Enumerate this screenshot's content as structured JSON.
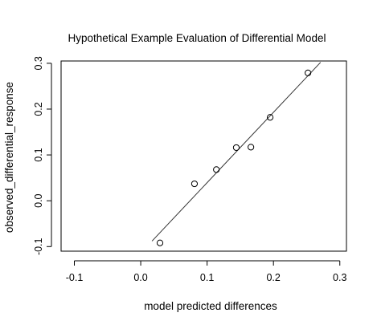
{
  "chart_data": {
    "type": "scatter",
    "title": "Hypothetical Example Evaluation of Differential Model",
    "xlabel": "model predicted differences",
    "ylabel": "observed_differential_response",
    "xlim": [
      -0.12,
      0.31
    ],
    "ylim": [
      -0.11,
      0.305
    ],
    "x_ticks": [
      -0.1,
      0.0,
      0.1,
      0.2,
      0.3
    ],
    "x_tick_labels": [
      "-0.1",
      "0.0",
      "0.1",
      "0.2",
      "0.3"
    ],
    "y_ticks": [
      -0.1,
      0.0,
      0.1,
      0.2,
      0.3
    ],
    "y_tick_labels": [
      "-0.1",
      "0.0",
      "0.1",
      "0.2",
      "0.3"
    ],
    "points": [
      {
        "x": 0.029,
        "y": -0.092
      },
      {
        "x": 0.081,
        "y": 0.037
      },
      {
        "x": 0.114,
        "y": 0.068
      },
      {
        "x": 0.144,
        "y": 0.116
      },
      {
        "x": 0.166,
        "y": 0.117
      },
      {
        "x": 0.195,
        "y": 0.182
      },
      {
        "x": 0.252,
        "y": 0.279
      }
    ],
    "fit_line": {
      "x1": 0.017,
      "y1": -0.088,
      "x2": 0.271,
      "y2": 0.302
    },
    "grid": false,
    "legend": "none"
  }
}
